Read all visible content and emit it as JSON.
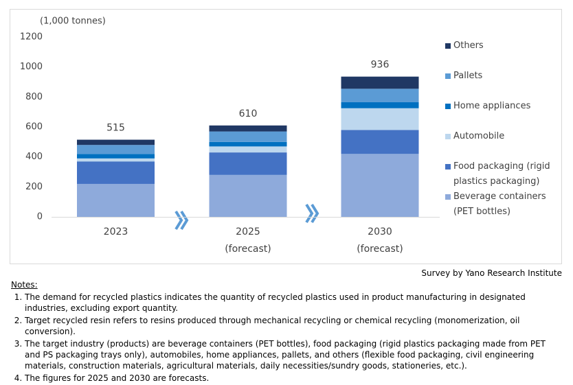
{
  "chart_data": {
    "type": "stacked-bar",
    "unit_label": "(1,000 tonnes)",
    "categories": [
      "2023",
      "2025",
      "2030"
    ],
    "category_notes": [
      null,
      "(forecast)",
      "(forecast)"
    ],
    "series": [
      {
        "name": "Beverage containers (PET bottles)",
        "color": "#8eaadb",
        "values": [
          220,
          280,
          420
        ]
      },
      {
        "name": "Food packaging (rigid plastics packaging)",
        "color": "#4472c4",
        "values": [
          150,
          150,
          160
        ]
      },
      {
        "name": "Automobile",
        "color": "#bdd7ee",
        "values": [
          20,
          40,
          145
        ]
      },
      {
        "name": "Home appliances",
        "color": "#0070c0",
        "values": [
          30,
          30,
          40
        ]
      },
      {
        "name": "Pallets",
        "color": "#5b9bd5",
        "values": [
          60,
          70,
          90
        ]
      },
      {
        "name": "Others",
        "color": "#203864",
        "values": [
          35,
          40,
          81
        ]
      }
    ],
    "totals": [
      515,
      610,
      936
    ],
    "ylim": [
      0,
      1200
    ],
    "yticks": [
      0,
      200,
      400,
      600,
      800,
      1000,
      1200
    ],
    "grid": false,
    "source": "Survey by Yano Research Institute"
  },
  "notes": {
    "heading": "Notes:",
    "items": [
      "The demand for recycled plastics indicates the quantity of recycled plastics  used in product manufacturing in designated industries, excluding export quantity.",
      "Target recycled resin refers to resins produced through mechanical recycling or chemical recycling (monomerization, oil conversion).",
      "The target industry (products) are beverage containers (PET bottles), food packaging (rigid plastics packaging made from PET and PS packaging trays only), automobiles, home appliances, pallets, and others (flexible food packaging, civil engineering materials, construction materials, agricultural materials, daily necessities/sundry goods, stationeries, etc.).",
      "The figures for 2025 and 2030 are forecasts."
    ]
  }
}
